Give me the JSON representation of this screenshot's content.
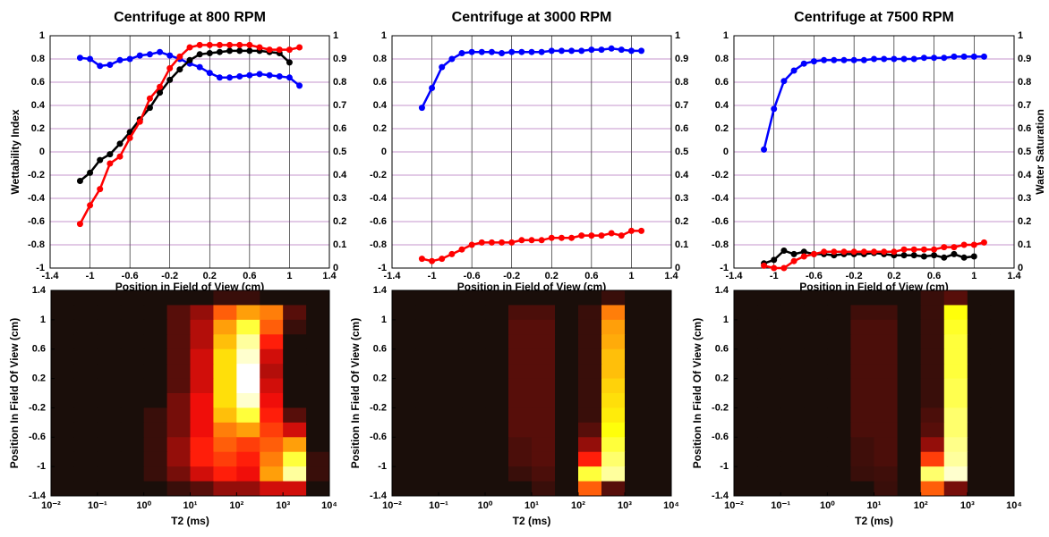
{
  "chart_data": [
    {
      "type": "line",
      "title": "Centrifuge at 800 RPM",
      "xlabel": "Position in Field of View (cm)",
      "ylabel": "Wettability Index",
      "ycolor": "#0000ff",
      "y2color": "#ff0000",
      "grid": true,
      "xlim": [
        -1.4,
        1.4
      ],
      "xticks": [
        -1.4,
        -1,
        -0.6,
        -0.2,
        0.2,
        0.6,
        1,
        1.4
      ],
      "ylim": [
        -1,
        1
      ],
      "yticks": [
        -1,
        -0.8,
        -0.6,
        -0.4,
        -0.2,
        0,
        0.2,
        0.4,
        0.6,
        0.8,
        1
      ],
      "y2lim": [
        0,
        1
      ],
      "y2ticks": [
        0,
        0.1,
        0.2,
        0.3,
        0.4,
        0.5,
        0.6,
        0.7,
        0.8,
        0.9,
        1
      ],
      "x": [
        -1.1,
        -1,
        -0.9,
        -0.8,
        -0.7,
        -0.6,
        -0.5,
        -0.4,
        -0.3,
        -0.2,
        -0.1,
        0,
        0.1,
        0.2,
        0.3,
        0.4,
        0.5,
        0.6,
        0.7,
        0.8,
        0.9,
        1,
        1.1
      ],
      "series": [
        {
          "color": "#0000ff",
          "values": [
            0.81,
            0.8,
            0.74,
            0.75,
            0.79,
            0.8,
            0.83,
            0.84,
            0.86,
            0.83,
            0.8,
            0.76,
            0.73,
            0.68,
            0.64,
            0.64,
            0.65,
            0.66,
            0.67,
            0.66,
            0.65,
            0.64,
            0.57
          ]
        },
        {
          "color": "#000000",
          "values": [
            -0.25,
            -0.18,
            -0.07,
            -0.02,
            0.07,
            0.17,
            0.28,
            0.38,
            0.51,
            0.62,
            0.71,
            0.79,
            0.84,
            0.85,
            0.86,
            0.87,
            0.87,
            0.87,
            0.87,
            0.86,
            0.85,
            0.77,
            null
          ]
        },
        {
          "color": "#ff0000",
          "axis": "y2",
          "values": [
            0.19,
            0.27,
            0.34,
            0.45,
            0.48,
            0.56,
            0.63,
            0.73,
            0.78,
            0.86,
            0.91,
            0.95,
            0.96,
            0.96,
            0.96,
            0.96,
            0.96,
            0.96,
            0.95,
            0.94,
            0.94,
            0.94,
            0.95
          ]
        }
      ]
    },
    {
      "type": "line",
      "title": "Centrifuge at 3000 RPM",
      "xlabel": "Position in Field of View (cm)",
      "ycolor": "#0000ff",
      "y2color": "#ff0000",
      "grid": true,
      "xlim": [
        -1.4,
        1.4
      ],
      "xticks": [
        -1.4,
        -1,
        -0.6,
        -0.2,
        0.2,
        0.6,
        1,
        1.4
      ],
      "ylim": [
        -1,
        1
      ],
      "yticks": [
        -1,
        -0.8,
        -0.6,
        -0.4,
        -0.2,
        0,
        0.2,
        0.4,
        0.6,
        0.8,
        1
      ],
      "y2lim": [
        0,
        1
      ],
      "y2ticks": [
        0,
        0.1,
        0.2,
        0.3,
        0.4,
        0.5,
        0.6,
        0.7,
        0.8,
        0.9,
        1
      ],
      "x": [
        -1.1,
        -1,
        -0.9,
        -0.8,
        -0.7,
        -0.6,
        -0.5,
        -0.4,
        -0.3,
        -0.2,
        -0.1,
        0,
        0.1,
        0.2,
        0.3,
        0.4,
        0.5,
        0.6,
        0.7,
        0.8,
        0.9,
        1,
        1.1
      ],
      "series": [
        {
          "color": "#0000ff",
          "values": [
            0.38,
            0.55,
            0.73,
            0.8,
            0.85,
            0.86,
            0.86,
            0.86,
            0.85,
            0.86,
            0.86,
            0.86,
            0.86,
            0.87,
            0.87,
            0.87,
            0.87,
            0.88,
            0.88,
            0.89,
            0.88,
            0.87,
            0.87
          ]
        },
        {
          "color": "#ff0000",
          "axis": "y2",
          "values": [
            0.04,
            0.03,
            0.04,
            0.06,
            0.08,
            0.1,
            0.11,
            0.11,
            0.11,
            0.11,
            0.12,
            0.12,
            0.12,
            0.13,
            0.13,
            0.13,
            0.14,
            0.14,
            0.14,
            0.15,
            0.14,
            0.16,
            0.16
          ]
        }
      ]
    },
    {
      "type": "line",
      "title": "Centrifuge at 7500 RPM",
      "xlabel": "Position in Field of View (cm)",
      "y2label": "Water Saturation",
      "ycolor": "#0000ff",
      "y2color": "#ff0000",
      "grid": true,
      "xlim": [
        -1.4,
        1.4
      ],
      "xticks": [
        -1.4,
        -1,
        -0.6,
        -0.2,
        0.2,
        0.6,
        1,
        1.4
      ],
      "ylim": [
        -1,
        1
      ],
      "yticks": [
        -1,
        -0.8,
        -0.6,
        -0.4,
        -0.2,
        0,
        0.2,
        0.4,
        0.6,
        0.8,
        1
      ],
      "y2lim": [
        0,
        1
      ],
      "y2ticks": [
        0,
        0.1,
        0.2,
        0.3,
        0.4,
        0.5,
        0.6,
        0.7,
        0.8,
        0.9,
        1
      ],
      "x": [
        -1.1,
        -1,
        -0.9,
        -0.8,
        -0.7,
        -0.6,
        -0.5,
        -0.4,
        -0.3,
        -0.2,
        -0.1,
        0,
        0.1,
        0.2,
        0.3,
        0.4,
        0.5,
        0.6,
        0.7,
        0.8,
        0.9,
        1,
        1.1
      ],
      "series": [
        {
          "color": "#0000ff",
          "values": [
            0.02,
            0.37,
            0.61,
            0.7,
            0.76,
            0.78,
            0.79,
            0.79,
            0.79,
            0.79,
            0.79,
            0.8,
            0.8,
            0.8,
            0.8,
            0.8,
            0.81,
            0.81,
            0.81,
            0.82,
            0.82,
            0.82,
            0.82
          ]
        },
        {
          "color": "#000000",
          "values": [
            -0.96,
            -0.93,
            -0.85,
            -0.88,
            -0.86,
            -0.88,
            -0.88,
            -0.89,
            -0.88,
            -0.88,
            -0.88,
            -0.87,
            -0.88,
            -0.89,
            -0.89,
            -0.89,
            -0.9,
            -0.89,
            -0.91,
            -0.88,
            -0.91,
            -0.9,
            null
          ]
        },
        {
          "color": "#ff0000",
          "axis": "y2",
          "values": [
            0.01,
            0,
            0,
            0.03,
            0.05,
            0.06,
            0.07,
            0.07,
            0.07,
            0.07,
            0.07,
            0.07,
            0.07,
            0.07,
            0.08,
            0.08,
            0.08,
            0.08,
            0.09,
            0.09,
            0.1,
            0.1,
            0.11
          ]
        }
      ]
    },
    {
      "type": "heatmap",
      "xlabel": "T2 (ms)",
      "ylabel": "Position In Field Of View (cm)",
      "log_x": true,
      "colormap": "hot",
      "xlim": [
        0.01,
        10000
      ],
      "xticks": [
        {
          "value": 0.01,
          "label": "10⁻²"
        },
        {
          "value": 0.1,
          "label": "10⁻¹"
        },
        {
          "value": 1,
          "label": "10⁰"
        },
        {
          "value": 10,
          "label": "10¹"
        },
        {
          "value": 100,
          "label": "10²"
        },
        {
          "value": 1000,
          "label": "10³"
        },
        {
          "value": 10000,
          "label": "10⁴"
        }
      ],
      "ylim": [
        -1.4,
        1.4
      ],
      "yticks": [
        -1.4,
        -1,
        -0.6,
        -0.2,
        0.2,
        0.6,
        1,
        1.4
      ],
      "z": [
        [
          0,
          0,
          0,
          0,
          0,
          0,
          0,
          0.05,
          0.05,
          0,
          0,
          0
        ],
        [
          0,
          0,
          0,
          0,
          0,
          0.1,
          0.2,
          0.5,
          0.6,
          0.55,
          0.1,
          0
        ],
        [
          0,
          0,
          0,
          0,
          0,
          0.1,
          0.25,
          0.6,
          0.8,
          0.5,
          0.05,
          0
        ],
        [
          0,
          0,
          0,
          0,
          0,
          0.1,
          0.25,
          0.65,
          0.9,
          0.4,
          0,
          0
        ],
        [
          0,
          0,
          0,
          0,
          0,
          0.1,
          0.3,
          0.7,
          0.95,
          0.3,
          0,
          0
        ],
        [
          0,
          0,
          0,
          0,
          0,
          0.1,
          0.3,
          0.7,
          1,
          0.25,
          0,
          0
        ],
        [
          0,
          0,
          0,
          0,
          0,
          0.1,
          0.3,
          0.7,
          1,
          0.3,
          0,
          0
        ],
        [
          0,
          0,
          0,
          0,
          0,
          0.15,
          0.35,
          0.7,
          0.95,
          0.35,
          0,
          0
        ],
        [
          0,
          0,
          0,
          0,
          0.05,
          0.15,
          0.35,
          0.65,
          0.8,
          0.4,
          0.1,
          0
        ],
        [
          0,
          0,
          0,
          0,
          0.05,
          0.15,
          0.35,
          0.55,
          0.6,
          0.45,
          0.3,
          0
        ],
        [
          0,
          0,
          0,
          0,
          0.05,
          0.2,
          0.4,
          0.5,
          0.45,
          0.5,
          0.6,
          0
        ],
        [
          0,
          0,
          0,
          0,
          0.05,
          0.2,
          0.4,
          0.45,
          0.4,
          0.55,
          0.8,
          0.05
        ],
        [
          0,
          0,
          0,
          0,
          0.05,
          0.15,
          0.3,
          0.4,
          0.35,
          0.6,
          0.9,
          0.05
        ],
        [
          0,
          0,
          0,
          0,
          0,
          0.05,
          0.1,
          0.2,
          0.2,
          0.3,
          0.3,
          0
        ]
      ]
    },
    {
      "type": "heatmap",
      "xlabel": "T2 (ms)",
      "ylabel": "Position In Field Of View (cm)",
      "log_x": true,
      "colormap": "hot",
      "xlim": [
        0.01,
        10000
      ],
      "xticks": [
        {
          "value": 0.01,
          "label": "10⁻²"
        },
        {
          "value": 0.1,
          "label": "10⁻¹"
        },
        {
          "value": 1,
          "label": "10⁰"
        },
        {
          "value": 10,
          "label": "10¹"
        },
        {
          "value": 100,
          "label": "10²"
        },
        {
          "value": 1000,
          "label": "10³"
        },
        {
          "value": 10000,
          "label": "10⁴"
        }
      ],
      "ylim": [
        -1.4,
        1.4
      ],
      "yticks": [
        -1.4,
        -1,
        -0.6,
        -0.2,
        0.2,
        0.6,
        1,
        1.4
      ],
      "z": [
        [
          0,
          0,
          0,
          0,
          0,
          0,
          0,
          0,
          0,
          0.05,
          0,
          0
        ],
        [
          0,
          0,
          0,
          0,
          0,
          0.08,
          0.08,
          0,
          0.05,
          0.55,
          0,
          0
        ],
        [
          0,
          0,
          0,
          0,
          0,
          0.1,
          0.1,
          0,
          0.05,
          0.6,
          0,
          0
        ],
        [
          0,
          0,
          0,
          0,
          0,
          0.1,
          0.1,
          0,
          0.05,
          0.62,
          0,
          0
        ],
        [
          0,
          0,
          0,
          0,
          0,
          0.1,
          0.1,
          0,
          0.05,
          0.65,
          0,
          0
        ],
        [
          0,
          0,
          0,
          0,
          0,
          0.1,
          0.1,
          0,
          0.05,
          0.65,
          0,
          0
        ],
        [
          0,
          0,
          0,
          0,
          0,
          0.1,
          0.1,
          0,
          0.05,
          0.68,
          0,
          0
        ],
        [
          0,
          0,
          0,
          0,
          0,
          0.1,
          0.1,
          0,
          0.05,
          0.7,
          0,
          0
        ],
        [
          0,
          0,
          0,
          0,
          0,
          0.1,
          0.1,
          0,
          0.05,
          0.72,
          0,
          0
        ],
        [
          0,
          0,
          0,
          0,
          0,
          0.1,
          0.1,
          0,
          0.1,
          0.75,
          0,
          0
        ],
        [
          0,
          0,
          0,
          0,
          0,
          0.08,
          0.1,
          0,
          0.2,
          0.8,
          0,
          0
        ],
        [
          0,
          0,
          0,
          0,
          0,
          0.08,
          0.1,
          0,
          0.4,
          0.85,
          0,
          0
        ],
        [
          0,
          0,
          0,
          0,
          0,
          0.05,
          0.08,
          0,
          0.8,
          0.9,
          0,
          0
        ],
        [
          0,
          0,
          0,
          0,
          0,
          0,
          0.05,
          0,
          0.5,
          0.1,
          0,
          0
        ]
      ]
    },
    {
      "type": "heatmap",
      "xlabel": "T2 (ms)",
      "ylabel": "Position In Field Of View (cm)",
      "log_x": true,
      "colormap": "hot",
      "xlim": [
        0.01,
        10000
      ],
      "xticks": [
        {
          "value": 0.01,
          "label": "10⁻²"
        },
        {
          "value": 0.1,
          "label": "10⁻¹"
        },
        {
          "value": 1,
          "label": "10⁰"
        },
        {
          "value": 10,
          "label": "10¹"
        },
        {
          "value": 100,
          "label": "10²"
        },
        {
          "value": 1000,
          "label": "10³"
        },
        {
          "value": 10000,
          "label": "10⁴"
        }
      ],
      "ylim": [
        -1.4,
        1.4
      ],
      "yticks": [
        -1.4,
        -1,
        -0.6,
        -0.2,
        0.2,
        0.6,
        1,
        1.4
      ],
      "z": [
        [
          0,
          0,
          0,
          0,
          0,
          0,
          0,
          0,
          0.05,
          0.1,
          0,
          0
        ],
        [
          0,
          0,
          0,
          0,
          0,
          0.06,
          0.06,
          0,
          0.05,
          0.75,
          0,
          0
        ],
        [
          0,
          0,
          0,
          0,
          0,
          0.08,
          0.08,
          0,
          0.05,
          0.78,
          0,
          0
        ],
        [
          0,
          0,
          0,
          0,
          0,
          0.08,
          0.08,
          0,
          0.05,
          0.8,
          0,
          0
        ],
        [
          0,
          0,
          0,
          0,
          0,
          0.08,
          0.08,
          0,
          0.05,
          0.8,
          0,
          0
        ],
        [
          0,
          0,
          0,
          0,
          0,
          0.08,
          0.08,
          0,
          0.05,
          0.8,
          0,
          0
        ],
        [
          0,
          0,
          0,
          0,
          0,
          0.08,
          0.08,
          0,
          0.05,
          0.82,
          0,
          0
        ],
        [
          0,
          0,
          0,
          0,
          0,
          0.08,
          0.08,
          0,
          0.05,
          0.82,
          0,
          0
        ],
        [
          0,
          0,
          0,
          0,
          0,
          0.08,
          0.08,
          0,
          0.08,
          0.85,
          0,
          0
        ],
        [
          0,
          0,
          0,
          0,
          0,
          0.08,
          0.08,
          0,
          0.1,
          0.85,
          0,
          0
        ],
        [
          0,
          0,
          0,
          0,
          0,
          0.06,
          0.08,
          0,
          0.2,
          0.88,
          0,
          0
        ],
        [
          0,
          0,
          0,
          0,
          0,
          0.06,
          0.08,
          0,
          0.45,
          0.9,
          0,
          0
        ],
        [
          0,
          0,
          0,
          0,
          0,
          0.05,
          0.06,
          0,
          0.85,
          0.95,
          0,
          0
        ],
        [
          0,
          0,
          0,
          0,
          0,
          0,
          0.05,
          0,
          0.5,
          0.15,
          0,
          0
        ]
      ]
    }
  ]
}
